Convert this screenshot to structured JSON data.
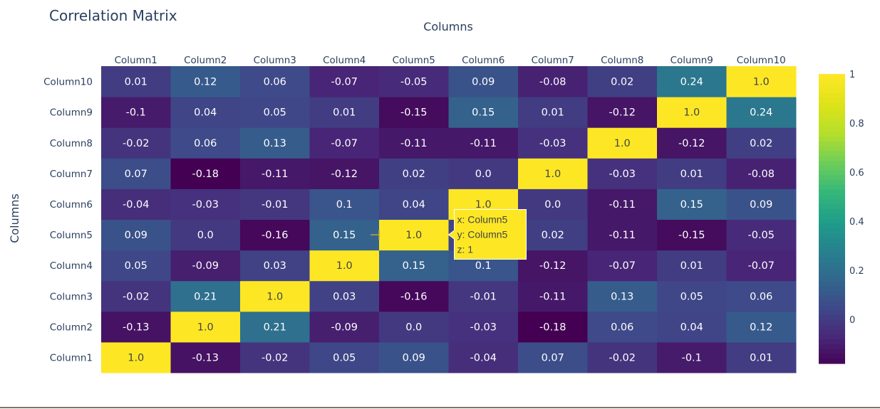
{
  "chart_data": {
    "type": "heatmap",
    "title": "Correlation Matrix",
    "xlabel": "Columns",
    "ylabel": "Columns",
    "x": [
      "Column1",
      "Column2",
      "Column3",
      "Column4",
      "Column5",
      "Column6",
      "Column7",
      "Column8",
      "Column9",
      "Column10"
    ],
    "y": [
      "Column1",
      "Column2",
      "Column3",
      "Column4",
      "Column5",
      "Column6",
      "Column7",
      "Column8",
      "Column9",
      "Column10"
    ],
    "z": [
      [
        1.0,
        -0.13,
        -0.02,
        0.05,
        0.09,
        -0.04,
        0.07,
        -0.02,
        -0.1,
        0.01
      ],
      [
        -0.13,
        1.0,
        0.21,
        -0.09,
        0.0,
        -0.03,
        -0.18,
        0.06,
        0.04,
        0.12
      ],
      [
        -0.02,
        0.21,
        1.0,
        0.03,
        -0.16,
        -0.01,
        -0.11,
        0.13,
        0.05,
        0.06
      ],
      [
        0.05,
        -0.09,
        0.03,
        1.0,
        0.15,
        0.1,
        -0.12,
        -0.07,
        0.01,
        -0.07
      ],
      [
        0.09,
        0.0,
        -0.16,
        0.15,
        1.0,
        0.04,
        0.02,
        -0.11,
        -0.15,
        -0.05
      ],
      [
        -0.04,
        -0.03,
        -0.01,
        0.1,
        0.04,
        1.0,
        0.0,
        -0.11,
        0.15,
        0.09
      ],
      [
        0.07,
        -0.18,
        -0.11,
        -0.12,
        0.02,
        0.0,
        1.0,
        -0.03,
        0.01,
        -0.08
      ],
      [
        -0.02,
        0.06,
        0.13,
        -0.07,
        -0.11,
        -0.11,
        -0.03,
        1.0,
        -0.12,
        0.02
      ],
      [
        -0.1,
        0.04,
        0.05,
        0.01,
        -0.15,
        0.15,
        0.01,
        -0.12,
        1.0,
        0.24
      ],
      [
        0.01,
        0.12,
        0.06,
        -0.07,
        -0.05,
        0.09,
        -0.08,
        0.02,
        0.24,
        1.0
      ]
    ],
    "zrange": [
      -0.18,
      1.0
    ],
    "colorscale": "Viridis",
    "colorbar_ticks": [
      "1",
      "0.8",
      "0.6",
      "0.4",
      "0.2",
      "0"
    ],
    "colorbar_tick_values": [
      1,
      0.8,
      0.6,
      0.4,
      0.2,
      0
    ],
    "hover": {
      "x_label": "x: Column5",
      "y_label": "y: Column5",
      "z_label": "z: 1",
      "x_index": 4,
      "y_index": 4
    }
  }
}
